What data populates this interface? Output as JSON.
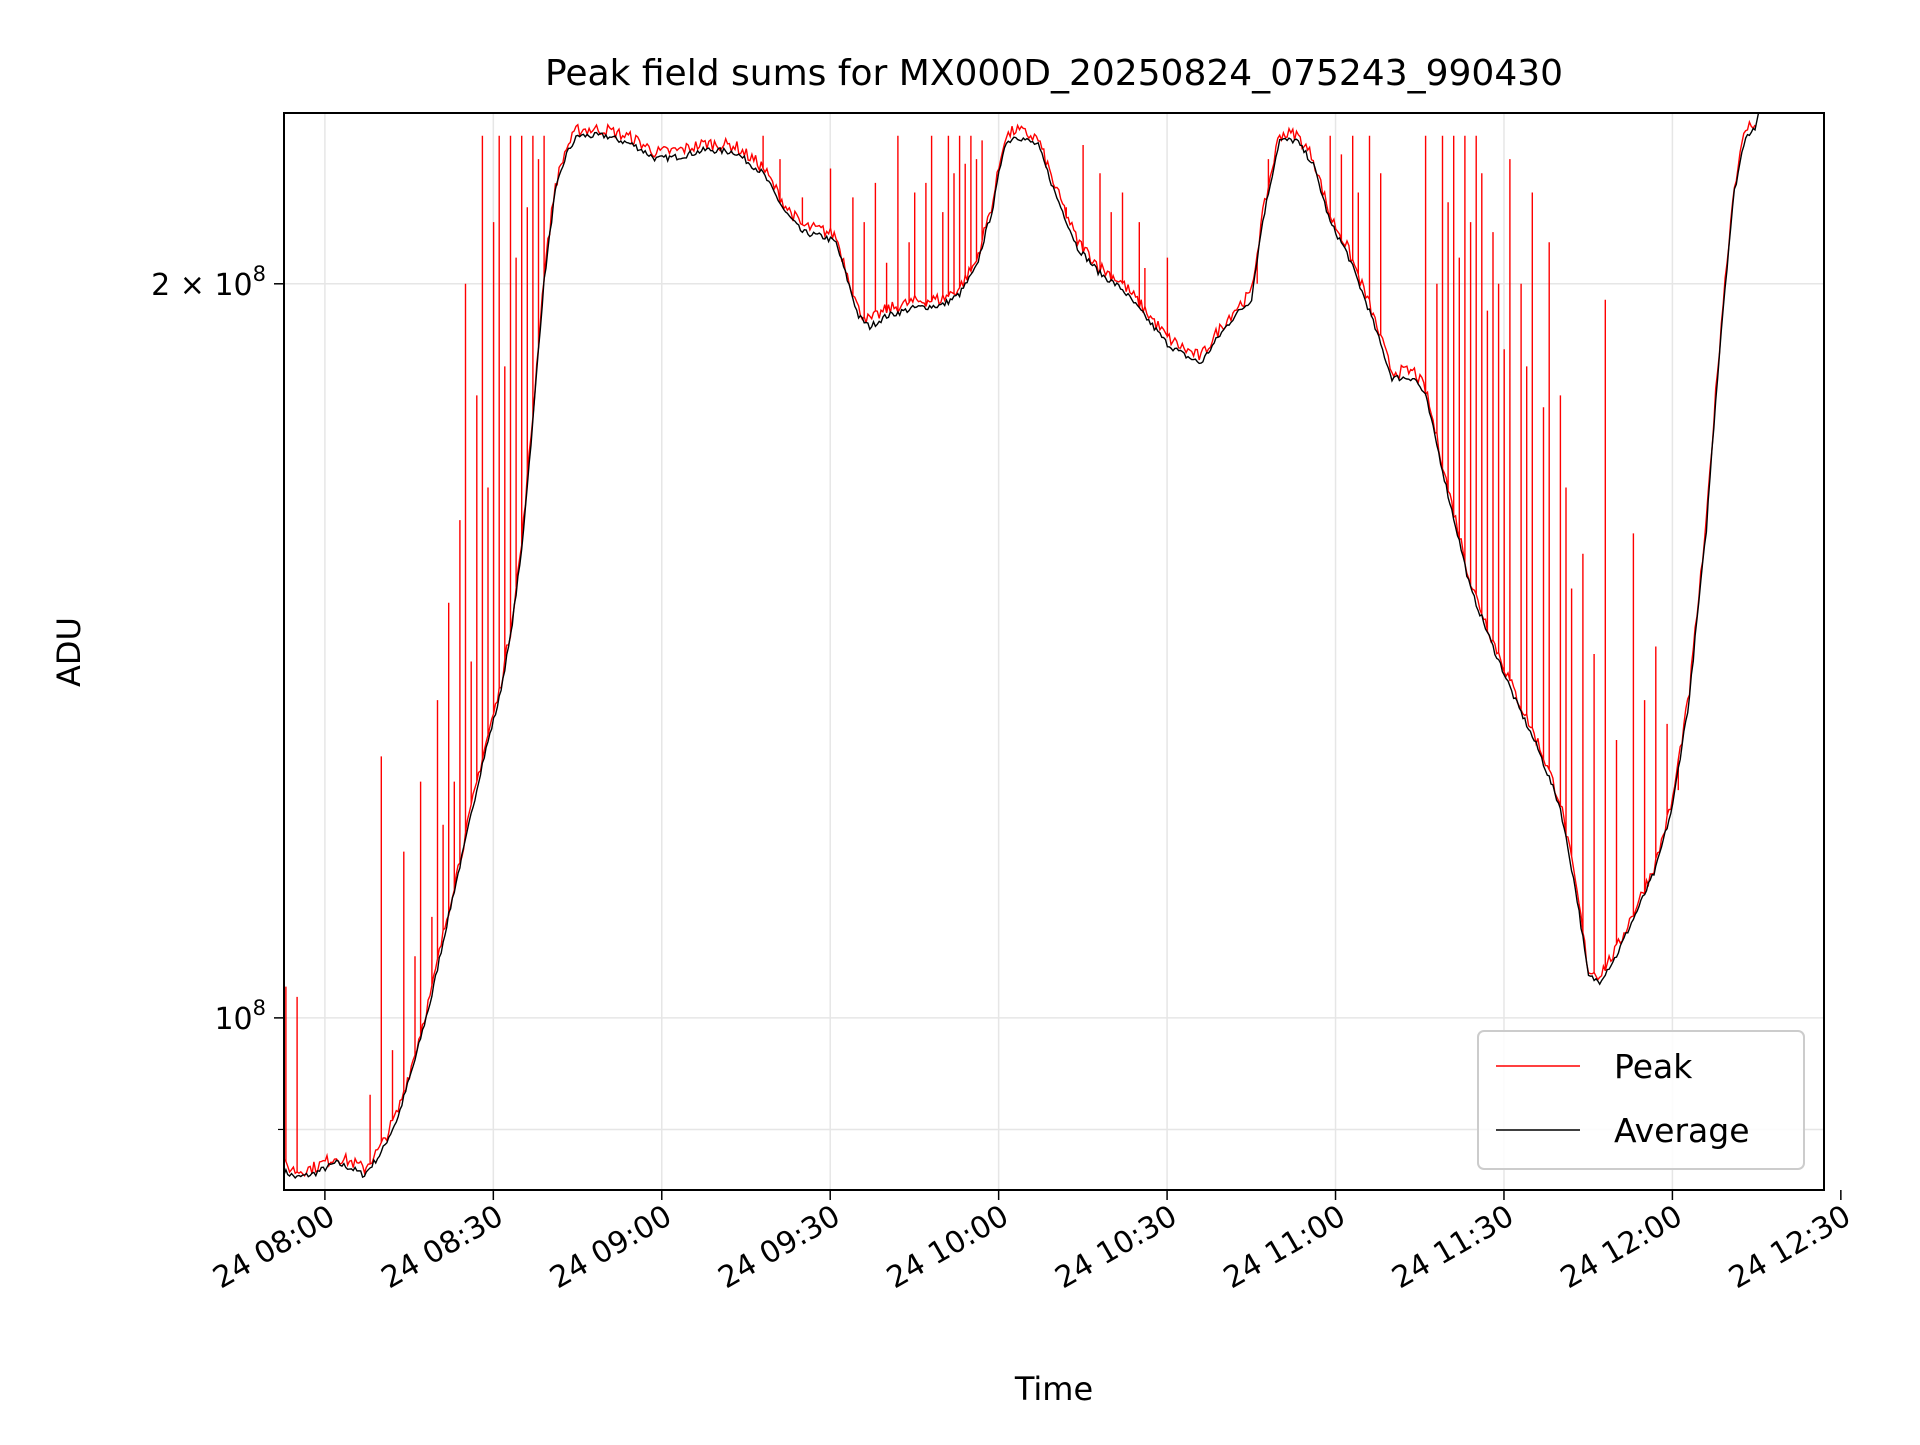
{
  "chart_data": {
    "type": "line",
    "title": "Peak field sums for MX000D_20250824_075243_990430",
    "xlabel": "Time",
    "ylabel": "ADU",
    "yscale": "log",
    "xlim": [
      "2025-08-24 07:52:43",
      "2025-08-24 12:27:00"
    ],
    "ylim": [
      85000000.0,
      235000000.0
    ],
    "grid": true,
    "legend_position": "lower right",
    "x_ticks": [
      "24 08:00",
      "24 08:30",
      "24 09:00",
      "24 09:30",
      "24 10:00",
      "24 10:30",
      "24 11:00",
      "24 11:30",
      "24 12:00",
      "24 12:30"
    ],
    "y_ticks": [
      {
        "value": 100000000,
        "base": "10",
        "exp": "8",
        "mantissa": ""
      },
      {
        "value": 200000000,
        "base": "10",
        "exp": "8",
        "mantissa": "2"
      }
    ],
    "colors": {
      "peak": "#ff0000",
      "average": "#000000",
      "grid": "#e6e6e6"
    },
    "series": [
      {
        "name": "Average",
        "key": "average",
        "points": [
          [
            "2025-08-24 07:52:43",
            86500000
          ],
          [
            "2025-08-24 07:55:00",
            86000000
          ],
          [
            "2025-08-24 07:58:00",
            86300000
          ],
          [
            "2025-08-24 08:02:00",
            87200000
          ],
          [
            "2025-08-24 08:05:00",
            86700000
          ],
          [
            "2025-08-24 08:07:00",
            86200000
          ],
          [
            "2025-08-24 08:10:00",
            88000000
          ],
          [
            "2025-08-24 08:13:00",
            91000000
          ],
          [
            "2025-08-24 08:16:00",
            96000000
          ],
          [
            "2025-08-24 08:19:00",
            102000000
          ],
          [
            "2025-08-24 08:22:00",
            110000000
          ],
          [
            "2025-08-24 08:25:00",
            118000000
          ],
          [
            "2025-08-24 08:28:00",
            127000000
          ],
          [
            "2025-08-24 08:31:00",
            135000000
          ],
          [
            "2025-08-24 08:33:00",
            143000000
          ],
          [
            "2025-08-24 08:35:00",
            155000000
          ],
          [
            "2025-08-24 08:37:00",
            175000000
          ],
          [
            "2025-08-24 08:39:00",
            200000000
          ],
          [
            "2025-08-24 08:41:00",
            218000000
          ],
          [
            "2025-08-24 08:43:00",
            226000000
          ],
          [
            "2025-08-24 08:45:00",
            230000000
          ],
          [
            "2025-08-24 08:50:00",
            230000000
          ],
          [
            "2025-08-24 08:55:00",
            228000000
          ],
          [
            "2025-08-24 08:59:00",
            225000000
          ],
          [
            "2025-08-24 09:03:00",
            225500000
          ],
          [
            "2025-08-24 09:08:00",
            227000000
          ],
          [
            "2025-08-24 09:13:00",
            226500000
          ],
          [
            "2025-08-24 09:18:00",
            222000000
          ],
          [
            "2025-08-24 09:22:00",
            214000000
          ],
          [
            "2025-08-24 09:25:00",
            210000000
          ],
          [
            "2025-08-24 09:29:00",
            209000000
          ],
          [
            "2025-08-24 09:31:00",
            208000000
          ],
          [
            "2025-08-24 09:33:00",
            201000000
          ],
          [
            "2025-08-24 09:35:00",
            194000000
          ],
          [
            "2025-08-24 09:37:00",
            192000000
          ],
          [
            "2025-08-24 09:40:00",
            194000000
          ],
          [
            "2025-08-24 09:45:00",
            195500000
          ],
          [
            "2025-08-24 09:50:00",
            196000000
          ],
          [
            "2025-08-24 09:53:00",
            198000000
          ],
          [
            "2025-08-24 09:56:00",
            203000000
          ],
          [
            "2025-08-24 09:59:00",
            215000000
          ],
          [
            "2025-08-24 10:01:00",
            228000000
          ],
          [
            "2025-08-24 10:03:00",
            230000000
          ],
          [
            "2025-08-24 10:07:00",
            228000000
          ],
          [
            "2025-08-24 10:10:00",
            218000000
          ],
          [
            "2025-08-24 10:14:00",
            207000000
          ],
          [
            "2025-08-24 10:18:00",
            202000000
          ],
          [
            "2025-08-24 10:22:00",
            199000000
          ],
          [
            "2025-08-24 10:26:00",
            194000000
          ],
          [
            "2025-08-24 10:30:00",
            189000000
          ],
          [
            "2025-08-24 10:33:00",
            187000000
          ],
          [
            "2025-08-24 10:36:00",
            185500000
          ],
          [
            "2025-08-24 10:39:00",
            190000000
          ],
          [
            "2025-08-24 10:42:00",
            194000000
          ],
          [
            "2025-08-24 10:45:00",
            197000000
          ],
          [
            "2025-08-24 10:47:00",
            212000000
          ],
          [
            "2025-08-24 10:50:00",
            229000000
          ],
          [
            "2025-08-24 10:53:00",
            229000000
          ],
          [
            "2025-08-24 10:56:00",
            224000000
          ],
          [
            "2025-08-24 10:59:00",
            212000000
          ],
          [
            "2025-08-24 11:02:00",
            206000000
          ],
          [
            "2025-08-24 11:06:00",
            195000000
          ],
          [
            "2025-08-24 11:10:00",
            183000000
          ],
          [
            "2025-08-24 11:14:00",
            183000000
          ],
          [
            "2025-08-24 11:16:00",
            180000000
          ],
          [
            "2025-08-24 11:20:00",
            164000000
          ],
          [
            "2025-08-24 11:24:00",
            150000000
          ],
          [
            "2025-08-24 11:28:00",
            142000000
          ],
          [
            "2025-08-24 11:32:00",
            135000000
          ],
          [
            "2025-08-24 11:36:00",
            129000000
          ],
          [
            "2025-08-24 11:40:00",
            122000000
          ],
          [
            "2025-08-24 11:43:00",
            112000000
          ],
          [
            "2025-08-24 11:45:00",
            104000000
          ],
          [
            "2025-08-24 11:47:00",
            103500000
          ],
          [
            "2025-08-24 11:50:00",
            106000000
          ],
          [
            "2025-08-24 11:54:00",
            111000000
          ],
          [
            "2025-08-24 11:57:00",
            115000000
          ],
          [
            "2025-08-24 12:00:00",
            122000000
          ],
          [
            "2025-08-24 12:03:00",
            135000000
          ],
          [
            "2025-08-24 12:06:00",
            158000000
          ],
          [
            "2025-08-24 12:09:00",
            195000000
          ],
          [
            "2025-08-24 12:11:00",
            218000000
          ],
          [
            "2025-08-24 12:13:00",
            230000000
          ],
          [
            "2025-08-24 12:15:00",
            232000000
          ]
        ]
      },
      {
        "name": "Peak",
        "key": "peak",
        "base": "average",
        "spikes": [
          [
            "2025-08-24 07:53:00",
            103000000
          ],
          [
            "2025-08-24 07:55:00",
            102000000
          ],
          [
            "2025-08-24 08:08:00",
            93000000
          ],
          [
            "2025-08-24 08:10:00",
            128000000
          ],
          [
            "2025-08-24 08:12:00",
            97000000
          ],
          [
            "2025-08-24 08:14:00",
            117000000
          ],
          [
            "2025-08-24 08:16:00",
            106000000
          ],
          [
            "2025-08-24 08:17:00",
            125000000
          ],
          [
            "2025-08-24 08:19:00",
            110000000
          ],
          [
            "2025-08-24 08:20:00",
            135000000
          ],
          [
            "2025-08-24 08:21:00",
            120000000
          ],
          [
            "2025-08-24 08:22:00",
            148000000
          ],
          [
            "2025-08-24 08:23:00",
            125000000
          ],
          [
            "2025-08-24 08:24:00",
            160000000
          ],
          [
            "2025-08-24 08:25:00",
            200000000
          ],
          [
            "2025-08-24 08:26:00",
            140000000
          ],
          [
            "2025-08-24 08:27:00",
            180000000
          ],
          [
            "2025-08-24 08:28:00",
            230000000
          ],
          [
            "2025-08-24 08:29:00",
            165000000
          ],
          [
            "2025-08-24 08:30:00",
            212000000
          ],
          [
            "2025-08-24 08:31:00",
            230000000
          ],
          [
            "2025-08-24 08:32:00",
            185000000
          ],
          [
            "2025-08-24 08:33:00",
            230000000
          ],
          [
            "2025-08-24 08:34:00",
            205000000
          ],
          [
            "2025-08-24 08:35:00",
            230000000
          ],
          [
            "2025-08-24 08:36:00",
            215000000
          ],
          [
            "2025-08-24 08:37:00",
            230000000
          ],
          [
            "2025-08-24 08:38:00",
            225000000
          ],
          [
            "2025-08-24 08:39:00",
            230000000
          ],
          [
            "2025-08-24 09:18:00",
            230000000
          ],
          [
            "2025-08-24 09:21:00",
            225000000
          ],
          [
            "2025-08-24 09:25:00",
            217000000
          ],
          [
            "2025-08-24 09:30:00",
            223000000
          ],
          [
            "2025-08-24 09:34:00",
            217000000
          ],
          [
            "2025-08-24 09:36:00",
            212000000
          ],
          [
            "2025-08-24 09:38:00",
            220000000
          ],
          [
            "2025-08-24 09:40:00",
            204000000
          ],
          [
            "2025-08-24 09:42:00",
            230000000
          ],
          [
            "2025-08-24 09:44:00",
            208000000
          ],
          [
            "2025-08-24 09:45:00",
            218000000
          ],
          [
            "2025-08-24 09:47:00",
            220000000
          ],
          [
            "2025-08-24 09:48:00",
            230000000
          ],
          [
            "2025-08-24 09:50:00",
            214000000
          ],
          [
            "2025-08-24 09:51:00",
            230000000
          ],
          [
            "2025-08-24 09:52:00",
            222000000
          ],
          [
            "2025-08-24 09:53:00",
            230000000
          ],
          [
            "2025-08-24 09:54:00",
            224000000
          ],
          [
            "2025-08-24 09:55:00",
            230000000
          ],
          [
            "2025-08-24 09:56:00",
            225000000
          ],
          [
            "2025-08-24 09:57:00",
            229000000
          ],
          [
            "2025-08-24 10:12:00",
            215000000
          ],
          [
            "2025-08-24 10:15:00",
            228000000
          ],
          [
            "2025-08-24 10:18:00",
            222000000
          ],
          [
            "2025-08-24 10:20:00",
            214000000
          ],
          [
            "2025-08-24 10:22:00",
            218000000
          ],
          [
            "2025-08-24 10:25:00",
            212000000
          ],
          [
            "2025-08-24 10:26:00",
            203000000
          ],
          [
            "2025-08-24 10:30:00",
            205000000
          ],
          [
            "2025-08-24 10:46:00",
            200000000
          ],
          [
            "2025-08-24 10:48:00",
            225000000
          ],
          [
            "2025-08-24 10:59:00",
            230000000
          ],
          [
            "2025-08-24 11:01:00",
            226000000
          ],
          [
            "2025-08-24 11:03:00",
            230000000
          ],
          [
            "2025-08-24 11:04:00",
            218000000
          ],
          [
            "2025-08-24 11:06:00",
            230000000
          ],
          [
            "2025-08-24 11:08:00",
            222000000
          ],
          [
            "2025-08-24 11:16:00",
            230000000
          ],
          [
            "2025-08-24 11:18:00",
            200000000
          ],
          [
            "2025-08-24 11:19:00",
            230000000
          ],
          [
            "2025-08-24 11:20:00",
            216000000
          ],
          [
            "2025-08-24 11:21:00",
            230000000
          ],
          [
            "2025-08-24 11:22:00",
            205000000
          ],
          [
            "2025-08-24 11:23:00",
            230000000
          ],
          [
            "2025-08-24 11:24:00",
            212000000
          ],
          [
            "2025-08-24 11:25:00",
            230000000
          ],
          [
            "2025-08-24 11:26:00",
            222000000
          ],
          [
            "2025-08-24 11:27:00",
            195000000
          ],
          [
            "2025-08-24 11:28:00",
            210000000
          ],
          [
            "2025-08-24 11:29:00",
            200000000
          ],
          [
            "2025-08-24 11:30:00",
            188000000
          ],
          [
            "2025-08-24 11:31:00",
            225000000
          ],
          [
            "2025-08-24 11:33:00",
            200000000
          ],
          [
            "2025-08-24 11:34:00",
            185000000
          ],
          [
            "2025-08-24 11:35:00",
            218000000
          ],
          [
            "2025-08-24 11:37:00",
            178000000
          ],
          [
            "2025-08-24 11:38:00",
            208000000
          ],
          [
            "2025-08-24 11:40:00",
            180000000
          ],
          [
            "2025-08-24 11:41:00",
            165000000
          ],
          [
            "2025-08-24 11:42:00",
            150000000
          ],
          [
            "2025-08-24 11:44:00",
            155000000
          ],
          [
            "2025-08-24 11:46:00",
            141000000
          ],
          [
            "2025-08-24 11:48:00",
            197000000
          ],
          [
            "2025-08-24 11:50:00",
            130000000
          ],
          [
            "2025-08-24 11:53:00",
            158000000
          ],
          [
            "2025-08-24 11:55:00",
            135000000
          ],
          [
            "2025-08-24 11:57:00",
            142000000
          ],
          [
            "2025-08-24 11:59:00",
            132000000
          ],
          [
            "2025-08-24 12:01:00",
            124000000
          ]
        ]
      }
    ]
  }
}
